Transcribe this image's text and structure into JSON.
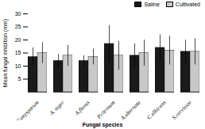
{
  "chart_data": {
    "type": "bar",
    "categories": [
      "F.oxysporum",
      "A. niger",
      "A.flavus",
      "P.citrinum",
      "A.alternata",
      "C.albicans",
      "S.cervisiae"
    ],
    "series": [
      {
        "name": "Saline",
        "color": "#1a1a1a",
        "values": [
          13.5,
          12.0,
          12.0,
          18.5,
          14.0,
          17.0,
          15.5
        ],
        "errors": [
          3.5,
          2.5,
          2.0,
          7.0,
          4.5,
          5.0,
          4.5
        ]
      },
      {
        "name": "Cultivated",
        "color": "#c8c8c8",
        "values": [
          15.0,
          14.0,
          13.5,
          14.0,
          15.0,
          16.0,
          15.5
        ],
        "errors": [
          4.0,
          4.0,
          3.0,
          5.5,
          5.0,
          5.5,
          5.0
        ]
      }
    ],
    "ylabel": "Mean fungal inhibition (mm)",
    "xlabel": "Fungal species",
    "ylim": [
      0,
      30
    ],
    "yticks": [
      5,
      10,
      15,
      20,
      25,
      30
    ],
    "legend": "upper right",
    "grid": false
  }
}
